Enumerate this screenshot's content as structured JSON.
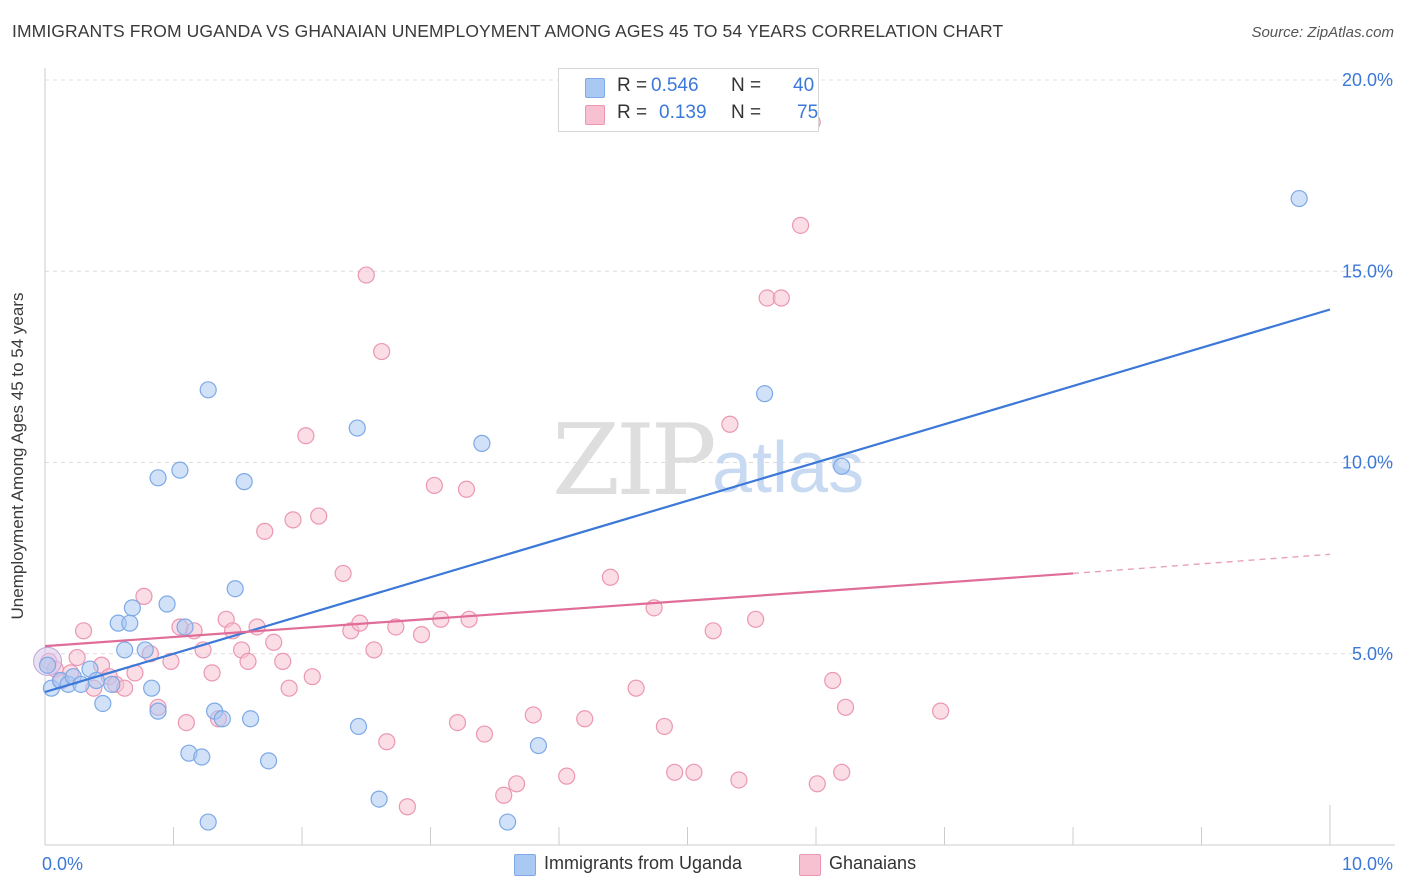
{
  "header": {
    "title": "IMMIGRANTS FROM UGANDA VS GHANAIAN UNEMPLOYMENT AMONG AGES 45 TO 54 YEARS CORRELATION CHART",
    "source": "Source: ZipAtlas.com"
  },
  "watermark": {
    "zip": "ZIP",
    "atlas": "atlas"
  },
  "legend": {
    "rows": [
      {
        "label": "R =",
        "r": "0.546",
        "n_label": "N =",
        "n": "40",
        "color": "#a9c8f2",
        "border": "#7ea9e6"
      },
      {
        "label": "R =",
        "r": "0.139",
        "n_label": "N =",
        "n": "75",
        "color": "#f7c1d2",
        "border": "#eb97b2"
      }
    ]
  },
  "bottom_legend": {
    "series1": "Immigrants from Uganda",
    "series2": "Ghanaians"
  },
  "chart_data": {
    "type": "scatter",
    "title": "IMMIGRANTS FROM UGANDA VS GHANAIAN UNEMPLOYMENT AMONG AGES 45 TO 54 YEARS CORRELATION CHART",
    "xlabel": "",
    "ylabel": "Unemployment Among Ages 45 to 54 years",
    "xlim": [
      0,
      10
    ],
    "ylim": [
      0,
      20
    ],
    "x_tick_labels": [
      {
        "value": 0,
        "label": "0.0%"
      },
      {
        "value": 10,
        "label": "10.0%"
      }
    ],
    "y_tick_labels": [
      {
        "value": 5,
        "label": "5.0%"
      },
      {
        "value": 10,
        "label": "10.0%"
      },
      {
        "value": 15,
        "label": "15.0%"
      },
      {
        "value": 20,
        "label": "20.0%"
      }
    ],
    "grid": true,
    "legend_position": "top-center",
    "series": [
      {
        "name": "Immigrants from Uganda",
        "color": "#a9c8f2",
        "stroke": "#7ea9e6",
        "points": [
          [
            0.02,
            4.7
          ],
          [
            0.05,
            4.1
          ],
          [
            0.12,
            4.3
          ],
          [
            0.18,
            4.2
          ],
          [
            0.22,
            4.4
          ],
          [
            0.28,
            4.2
          ],
          [
            0.35,
            4.6
          ],
          [
            0.4,
            4.3
          ],
          [
            0.45,
            3.7
          ],
          [
            0.52,
            4.2
          ],
          [
            0.57,
            5.8
          ],
          [
            0.62,
            5.1
          ],
          [
            0.66,
            5.8
          ],
          [
            0.68,
            6.2
          ],
          [
            0.78,
            5.1
          ],
          [
            0.83,
            4.1
          ],
          [
            0.88,
            3.5
          ],
          [
            0.95,
            6.3
          ],
          [
            1.05,
            9.8
          ],
          [
            0.88,
            9.6
          ],
          [
            1.09,
            5.7
          ],
          [
            1.12,
            2.4
          ],
          [
            1.22,
            2.3
          ],
          [
            1.27,
            0.6
          ],
          [
            1.32,
            3.5
          ],
          [
            1.38,
            3.3
          ],
          [
            1.48,
            6.7
          ],
          [
            1.55,
            9.5
          ],
          [
            1.6,
            3.3
          ],
          [
            1.74,
            2.2
          ],
          [
            1.27,
            11.9
          ],
          [
            2.43,
            10.9
          ],
          [
            2.44,
            3.1
          ],
          [
            2.6,
            1.2
          ],
          [
            3.4,
            10.5
          ],
          [
            3.6,
            0.6
          ],
          [
            3.84,
            2.6
          ],
          [
            5.6,
            11.8
          ],
          [
            6.2,
            9.9
          ],
          [
            9.76,
            16.9
          ]
        ],
        "trend": {
          "x": [
            0,
            10
          ],
          "y": [
            4.0,
            14.0
          ]
        }
      },
      {
        "name": "Ghanaians",
        "color": "#f7c1d2",
        "stroke": "#eb97b2",
        "points": [
          [
            0.03,
            4.8
          ],
          [
            0.08,
            4.6
          ],
          [
            0.13,
            4.3
          ],
          [
            0.2,
            4.5
          ],
          [
            0.25,
            4.9
          ],
          [
            0.3,
            5.6
          ],
          [
            0.38,
            4.1
          ],
          [
            0.44,
            4.7
          ],
          [
            0.5,
            4.4
          ],
          [
            0.55,
            4.2
          ],
          [
            0.62,
            4.1
          ],
          [
            0.7,
            4.5
          ],
          [
            0.77,
            6.5
          ],
          [
            0.82,
            5.0
          ],
          [
            0.88,
            3.6
          ],
          [
            0.98,
            4.8
          ],
          [
            1.05,
            5.7
          ],
          [
            1.1,
            3.2
          ],
          [
            1.16,
            5.6
          ],
          [
            1.23,
            5.1
          ],
          [
            1.3,
            4.5
          ],
          [
            1.35,
            3.3
          ],
          [
            1.41,
            5.9
          ],
          [
            1.46,
            5.6
          ],
          [
            1.53,
            5.1
          ],
          [
            1.58,
            4.8
          ],
          [
            1.65,
            5.7
          ],
          [
            1.71,
            8.2
          ],
          [
            1.78,
            5.3
          ],
          [
            1.85,
            4.8
          ],
          [
            1.9,
            4.1
          ],
          [
            1.93,
            8.5
          ],
          [
            2.03,
            10.7
          ],
          [
            2.08,
            4.4
          ],
          [
            2.13,
            8.6
          ],
          [
            2.32,
            7.1
          ],
          [
            2.38,
            5.6
          ],
          [
            2.45,
            5.8
          ],
          [
            2.5,
            14.9
          ],
          [
            2.56,
            5.1
          ],
          [
            2.62,
            12.9
          ],
          [
            2.66,
            2.7
          ],
          [
            2.73,
            5.7
          ],
          [
            2.82,
            1.0
          ],
          [
            2.93,
            5.5
          ],
          [
            3.03,
            9.4
          ],
          [
            3.08,
            5.9
          ],
          [
            3.28,
            9.3
          ],
          [
            3.3,
            5.9
          ],
          [
            3.21,
            3.2
          ],
          [
            3.42,
            2.9
          ],
          [
            3.57,
            1.3
          ],
          [
            3.67,
            1.6
          ],
          [
            3.8,
            3.4
          ],
          [
            4.06,
            1.8
          ],
          [
            4.2,
            3.3
          ],
          [
            4.4,
            7.0
          ],
          [
            4.6,
            4.1
          ],
          [
            4.74,
            6.2
          ],
          [
            4.82,
            3.1
          ],
          [
            4.9,
            1.9
          ],
          [
            5.05,
            1.9
          ],
          [
            5.2,
            5.6
          ],
          [
            5.33,
            11.0
          ],
          [
            5.4,
            1.7
          ],
          [
            5.62,
            14.3
          ],
          [
            5.73,
            14.3
          ],
          [
            5.88,
            16.2
          ],
          [
            5.97,
            18.9
          ],
          [
            6.01,
            1.6
          ],
          [
            6.2,
            1.9
          ],
          [
            6.23,
            3.6
          ],
          [
            6.13,
            4.3
          ],
          [
            6.97,
            3.5
          ],
          [
            5.53,
            5.9
          ]
        ],
        "trend": {
          "x": [
            0,
            8.0
          ],
          "y": [
            5.2,
            7.1
          ]
        },
        "trend_dashed": {
          "x": [
            8.0,
            10
          ],
          "y": [
            7.1,
            7.6
          ]
        }
      }
    ]
  }
}
